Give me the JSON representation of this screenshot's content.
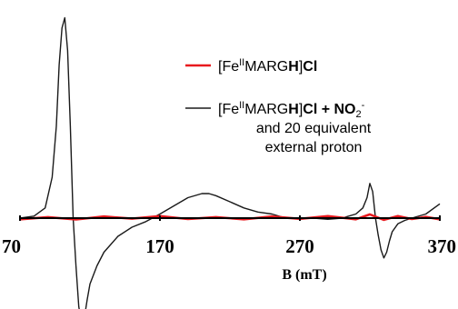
{
  "chart_data": {
    "type": "line",
    "title": "",
    "xlabel": "B (mT)",
    "ylabel": "",
    "xlim": [
      70,
      370
    ],
    "ylim": [
      -1.0,
      1.0
    ],
    "x_ticks": [
      "70",
      "170",
      "270",
      "370"
    ],
    "x_tick_values": [
      70,
      170,
      270,
      370
    ],
    "grid": false,
    "legend": {
      "placement": "top-right",
      "entries": [
        {
          "series": 0,
          "line1": [
            {
              "text": "[Fe"
            },
            {
              "text": "II",
              "sup": true
            },
            {
              "text": "MARG"
            },
            {
              "text": "H",
              "bold": true
            },
            {
              "text": "]"
            },
            {
              "text": "Cl",
              "bold": true
            }
          ]
        },
        {
          "series": 1,
          "line1": [
            {
              "text": "[Fe"
            },
            {
              "text": "II",
              "sup": true
            },
            {
              "text": "MARG"
            },
            {
              "text": "H",
              "bold": true
            },
            {
              "text": "]"
            },
            {
              "text": "Cl + NO",
              "bold": true
            },
            {
              "text": "2",
              "sub": true
            },
            {
              "text": "-",
              "sup": true
            }
          ],
          "line2": "and 20 equivalent",
          "line3": "external proton"
        }
      ]
    },
    "series": [
      {
        "color": "#e8191e",
        "x": [
          70,
          90,
          110,
          130,
          150,
          170,
          190,
          210,
          230,
          250,
          270,
          290,
          310,
          320,
          330,
          340,
          350,
          360,
          370
        ],
        "y": [
          -0.01,
          0.005,
          -0.012,
          0.008,
          -0.005,
          0.01,
          -0.008,
          0.005,
          -0.01,
          0.008,
          -0.006,
          0.01,
          -0.01,
          0.018,
          -0.015,
          0.01,
          -0.008,
          0.006,
          -0.01
        ]
      },
      {
        "color": "#1a1a1a",
        "x": [
          70,
          80,
          88,
          93,
          96,
          98,
          100,
          102,
          104,
          106,
          108,
          110,
          112,
          114,
          116,
          118,
          120,
          125,
          130,
          140,
          150,
          160,
          170,
          180,
          190,
          200,
          205,
          210,
          220,
          230,
          240,
          250,
          260,
          270,
          280,
          290,
          300,
          310,
          315,
          318,
          320,
          322,
          324,
          326,
          328,
          330,
          332,
          334,
          336,
          340,
          345,
          350,
          360,
          370
        ],
        "y": [
          0.0,
          0.01,
          0.05,
          0.2,
          0.45,
          0.75,
          0.93,
          0.98,
          0.82,
          0.45,
          0.0,
          -0.42,
          -0.78,
          -0.92,
          -0.88,
          -0.72,
          -0.58,
          -0.42,
          -0.3,
          -0.16,
          -0.08,
          -0.03,
          0.02,
          0.06,
          0.1,
          0.12,
          0.12,
          0.11,
          0.08,
          0.05,
          0.03,
          0.02,
          0.0,
          0.0,
          0.0,
          -0.01,
          0.0,
          0.02,
          0.05,
          0.1,
          0.17,
          0.13,
          0.0,
          -0.15,
          -0.28,
          -0.35,
          -0.3,
          -0.2,
          -0.12,
          -0.05,
          -0.02,
          0.0,
          0.02,
          0.07
        ]
      }
    ]
  }
}
